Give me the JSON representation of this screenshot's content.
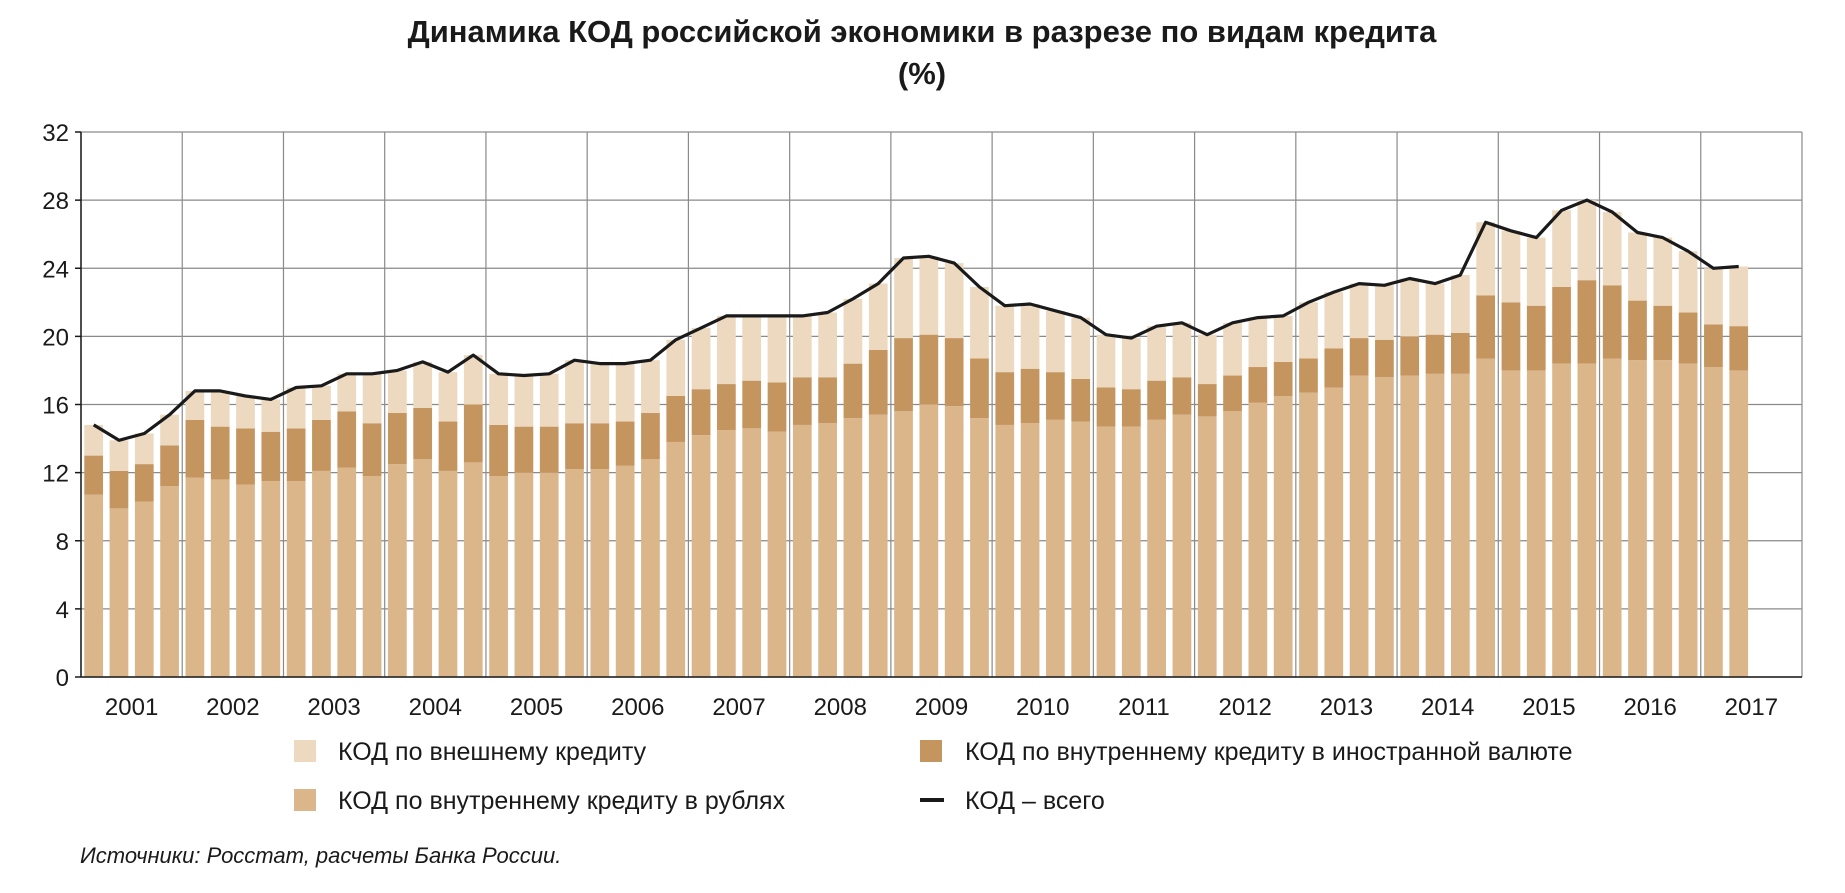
{
  "chart_data": {
    "type": "bar",
    "title": "Динамика КОД российской экономики в разрезе по видам кредита",
    "subtitle": "(%)",
    "xlabel": "",
    "ylabel": "",
    "ylim": [
      0,
      32
    ],
    "yticks": [
      "0",
      "4",
      "8",
      "12",
      "16",
      "20",
      "24",
      "28",
      "32"
    ],
    "grid": true,
    "stacked": true,
    "year_labels": [
      "2001",
      "2002",
      "2003",
      "2004",
      "2005",
      "2006",
      "2007",
      "2008",
      "2009",
      "2010",
      "2011",
      "2012",
      "2013",
      "2014",
      "2015",
      "2016",
      "2017"
    ],
    "categories": [
      "2001 Q1",
      "2001 Q2",
      "2001 Q3",
      "2001 Q4",
      "2002 Q1",
      "2002 Q2",
      "2002 Q3",
      "2002 Q4",
      "2003 Q1",
      "2003 Q2",
      "2003 Q3",
      "2003 Q4",
      "2004 Q1",
      "2004 Q2",
      "2004 Q3",
      "2004 Q4",
      "2005 Q1",
      "2005 Q2",
      "2005 Q3",
      "2005 Q4",
      "2006 Q1",
      "2006 Q2",
      "2006 Q3",
      "2006 Q4",
      "2007 Q1",
      "2007 Q2",
      "2007 Q3",
      "2007 Q4",
      "2008 Q1",
      "2008 Q2",
      "2008 Q3",
      "2008 Q4",
      "2009 Q1",
      "2009 Q2",
      "2009 Q3",
      "2009 Q4",
      "2010 Q1",
      "2010 Q2",
      "2010 Q3",
      "2010 Q4",
      "2011 Q1",
      "2011 Q2",
      "2011 Q3",
      "2011 Q4",
      "2012 Q1",
      "2012 Q2",
      "2012 Q3",
      "2012 Q4",
      "2013 Q1",
      "2013 Q2",
      "2013 Q3",
      "2013 Q4",
      "2014 Q1",
      "2014 Q2",
      "2014 Q3",
      "2014 Q4",
      "2015 Q1",
      "2015 Q2",
      "2015 Q3",
      "2015 Q4",
      "2016 Q1",
      "2016 Q2",
      "2016 Q3",
      "2016 Q4",
      "2017 Q1",
      "2017 Q2"
    ],
    "series": [
      {
        "name": "КОД по внутреннему кредиту в рублях",
        "color": "#dcb68b",
        "values": [
          10.7,
          9.9,
          10.3,
          11.2,
          11.7,
          11.6,
          11.3,
          11.5,
          11.5,
          12.1,
          12.3,
          11.8,
          12.5,
          12.8,
          12.1,
          12.6,
          11.8,
          12.0,
          12.0,
          12.2,
          12.2,
          12.4,
          12.8,
          13.8,
          14.2,
          14.5,
          14.6,
          14.4,
          14.8,
          14.9,
          15.2,
          15.4,
          15.6,
          16.0,
          15.9,
          15.2,
          14.8,
          14.9,
          15.1,
          15.0,
          14.7,
          14.7,
          15.1,
          15.4,
          15.3,
          15.6,
          16.1,
          16.5,
          16.7,
          17.0,
          17.7,
          17.6,
          17.7,
          17.8,
          17.8,
          18.7,
          18.0,
          18.0,
          18.4,
          18.4,
          18.7,
          18.6,
          18.6,
          18.4,
          18.2,
          18.0
        ]
      },
      {
        "name": "КОД по внутреннему кредиту в иностранной валюте",
        "color": "#c59560",
        "values": [
          2.3,
          2.2,
          2.2,
          2.4,
          3.4,
          3.1,
          3.3,
          2.9,
          3.1,
          3.0,
          3.3,
          3.1,
          3.0,
          3.0,
          2.9,
          3.4,
          3.0,
          2.7,
          2.7,
          2.7,
          2.7,
          2.6,
          2.7,
          2.7,
          2.7,
          2.7,
          2.8,
          2.9,
          2.8,
          2.7,
          3.2,
          3.8,
          4.3,
          4.1,
          4.0,
          3.5,
          3.1,
          3.2,
          2.8,
          2.5,
          2.3,
          2.2,
          2.3,
          2.2,
          1.9,
          2.1,
          2.1,
          2.0,
          2.0,
          2.3,
          2.2,
          2.2,
          2.3,
          2.3,
          2.4,
          3.7,
          4.0,
          3.8,
          4.5,
          4.9,
          4.3,
          3.5,
          3.2,
          3.0,
          2.5,
          2.6
        ]
      },
      {
        "name": "КОД по внешнему кредиту",
        "color": "#ecd9bf",
        "values": [
          1.8,
          1.8,
          1.8,
          1.8,
          1.7,
          2.1,
          1.9,
          1.9,
          2.4,
          2.0,
          2.2,
          2.9,
          2.5,
          2.7,
          2.9,
          2.9,
          3.0,
          3.0,
          3.1,
          3.7,
          3.5,
          3.4,
          3.1,
          3.3,
          3.6,
          4.0,
          3.8,
          3.9,
          3.6,
          3.8,
          3.8,
          3.9,
          4.7,
          4.6,
          4.4,
          4.2,
          3.9,
          3.8,
          3.6,
          3.6,
          3.1,
          3.0,
          3.2,
          3.2,
          2.9,
          3.1,
          2.9,
          2.7,
          3.3,
          3.3,
          3.2,
          3.2,
          3.4,
          3.0,
          3.4,
          4.3,
          4.2,
          4.0,
          4.5,
          4.7,
          4.3,
          4.0,
          4.0,
          3.6,
          3.3,
          3.5
        ]
      }
    ],
    "line": {
      "name": "КОД – всего",
      "color": "#1a1a1a",
      "values": [
        14.8,
        13.9,
        14.3,
        15.4,
        16.8,
        16.8,
        16.5,
        16.3,
        17.0,
        17.1,
        17.8,
        17.8,
        18.0,
        18.5,
        17.9,
        18.9,
        17.8,
        17.7,
        17.8,
        18.6,
        18.4,
        18.4,
        18.6,
        19.8,
        20.5,
        21.2,
        21.2,
        21.2,
        21.2,
        21.4,
        22.2,
        23.1,
        24.6,
        24.7,
        24.3,
        22.9,
        21.8,
        21.9,
        21.5,
        21.1,
        20.1,
        19.9,
        20.6,
        20.8,
        20.1,
        20.8,
        21.1,
        21.2,
        22.0,
        22.6,
        23.1,
        23.0,
        23.4,
        23.1,
        23.6,
        26.7,
        26.2,
        25.8,
        27.4,
        28.0,
        27.3,
        26.1,
        25.8,
        25.0,
        24.0,
        24.1
      ]
    },
    "legend_placement": "bottom",
    "source": "Источники: Росстат, расчеты Банка России."
  }
}
